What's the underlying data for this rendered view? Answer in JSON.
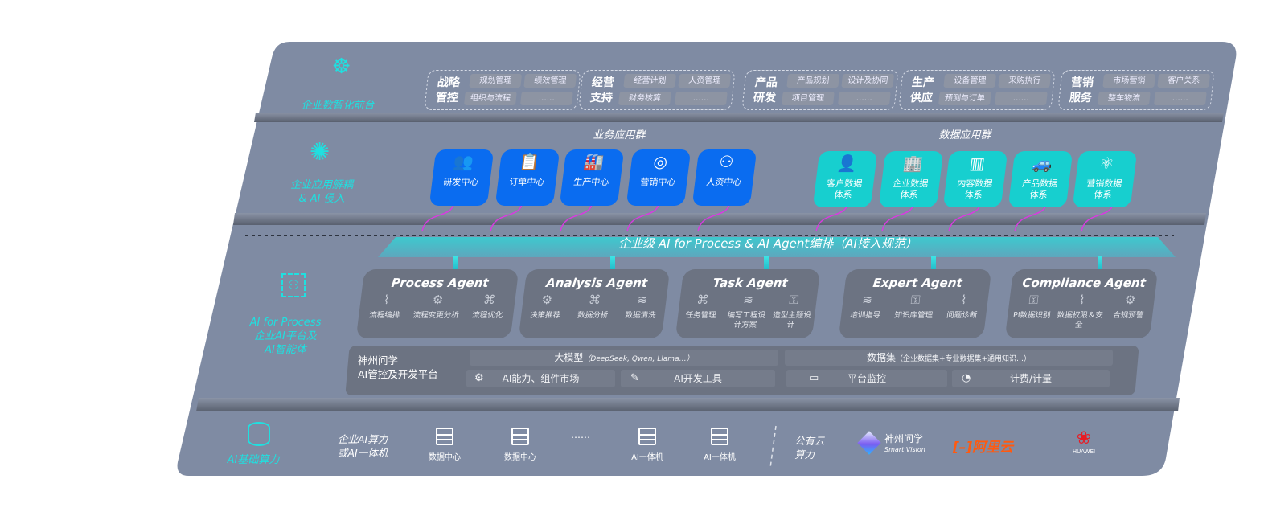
{
  "layers": {
    "frontend": {
      "label": "企业数智化前台",
      "icon": "brain-icon"
    },
    "apps": {
      "label": "企业应用解耦\n& AI 侵入",
      "icon": "molecule-icon"
    },
    "ai_platform": {
      "label_line1": "AI for Process",
      "label_line2": "企业AI平台及",
      "label_line3": "AI智能体",
      "icon": "face-scan-icon"
    },
    "compute": {
      "label": "AI基础算力",
      "icon": "database-icon"
    }
  },
  "groups": [
    {
      "title": "战略管控",
      "items": [
        "规划管理",
        "绩效管理",
        "组织与流程",
        "……"
      ]
    },
    {
      "title": "经营支持",
      "items": [
        "经营计划",
        "人资管理",
        "财务核算",
        "……"
      ]
    },
    {
      "title": "产品研发",
      "items": [
        "产品规划",
        "设计及协同",
        "项目管理",
        "……"
      ]
    },
    {
      "title": "生产供应",
      "items": [
        "设备管理",
        "采购执行",
        "预测与订单",
        "……"
      ]
    },
    {
      "title": "营销服务",
      "items": [
        "市场营销",
        "客户关系",
        "整车物流",
        "……"
      ]
    }
  ],
  "business_apps": {
    "title": "业务应用群",
    "items": [
      {
        "label": "研发中心",
        "icon": "team-icon"
      },
      {
        "label": "订单中心",
        "icon": "clipboard-icon"
      },
      {
        "label": "生产中心",
        "icon": "factory-icon"
      },
      {
        "label": "营销中心",
        "icon": "target-icon"
      },
      {
        "label": "人资中心",
        "icon": "person-icon"
      }
    ]
  },
  "data_apps": {
    "title": "数据应用群",
    "items": [
      {
        "label": "客户数据体系",
        "icon": "user-icon"
      },
      {
        "label": "企业数据体系",
        "icon": "building-icon"
      },
      {
        "label": "内容数据体系",
        "icon": "books-icon"
      },
      {
        "label": "产品数据体系",
        "icon": "car-icon"
      },
      {
        "label": "营销数据体系",
        "icon": "atom-icon"
      }
    ]
  },
  "orchestration_banner": "企业级 AI for Process & AI Agent编排（AI接入规范）",
  "agents": [
    {
      "title": "Process Agent",
      "items": [
        "流程编排",
        "流程变更分析",
        "流程优化"
      ]
    },
    {
      "title": "Analysis Agent",
      "items": [
        "决策推荐",
        "数据分析",
        "数据清洗"
      ]
    },
    {
      "title": "Task Agent",
      "items": [
        "任务管理",
        "编写工程设计方案",
        "造型主题设计"
      ]
    },
    {
      "title": "Expert Agent",
      "items": [
        "培训指导",
        "知识库管理",
        "问题诊断"
      ]
    },
    {
      "title": "Compliance Agent",
      "items": [
        "PI数据识别",
        "数据权限＆安全",
        "合规预警"
      ]
    }
  ],
  "platform": {
    "title_line1": "神州问学",
    "title_line2": "AI管控及开发平台",
    "llm": "大模型",
    "llm_note": "（DeepSeek, Qwen, Llama…）",
    "dataset": "数据集",
    "dataset_note": "（企业数据集+专业数据集+通用知识…）",
    "tools": [
      "AI能力、组件市场",
      "AI开发工具",
      "平台监控",
      "计费/计量"
    ]
  },
  "compute": {
    "private_label_line1": "企业AI算力",
    "private_label_line2": "或AI一体机",
    "servers": [
      "数据中心",
      "数据中心",
      "AI一体机",
      "AI一体机"
    ],
    "ellipsis": "……",
    "public_label_line1": "公有云",
    "public_label_line2": "算力",
    "vendors": [
      {
        "name": "神州问学",
        "sub": "Smart Vision"
      },
      {
        "name": "阿里云"
      },
      {
        "name": "HUAWEI"
      }
    ]
  },
  "colors": {
    "panel": "#7f8ba3",
    "cyan": "#1fe0e0",
    "blue": "#0a6cf0",
    "teal": "#17cfcf",
    "connector": "#d83be0",
    "aliyun": "#ff5a10",
    "huawei": "#e81c24"
  }
}
